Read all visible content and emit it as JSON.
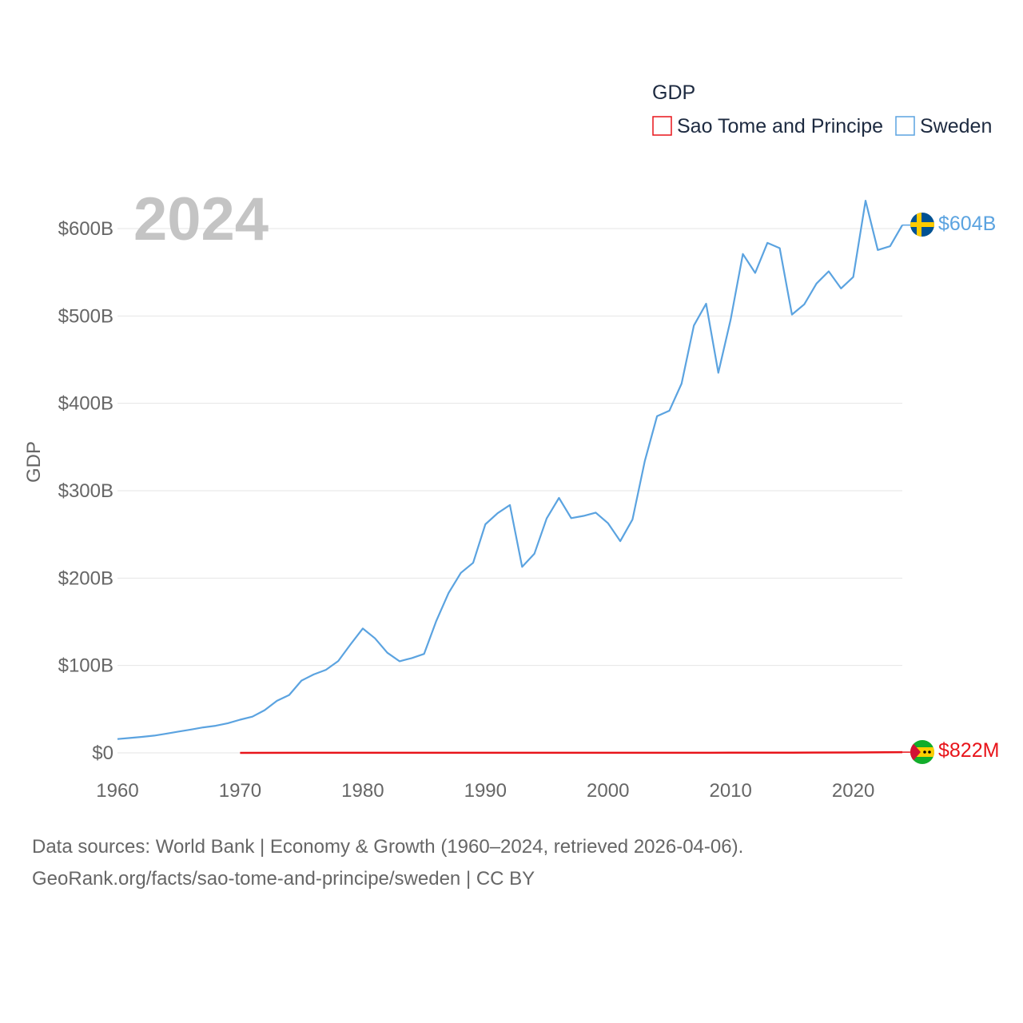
{
  "colors": {
    "sweden": "#5ba3e0",
    "sao_tome": "#e8141a",
    "grid": "#e6e6e6",
    "text": "#666666",
    "legend_text": "#1d2a40",
    "year": "#c4c4c4"
  },
  "chart_data": {
    "type": "line",
    "title": "",
    "ylabel": "GDP",
    "xlabel": "",
    "year_label": "2024",
    "xlim": [
      1960,
      2024
    ],
    "ylim": [
      0,
      600
    ],
    "y_unit": "billion USD",
    "x_ticks": [
      "1960",
      "1970",
      "1980",
      "1990",
      "2000",
      "2010",
      "2020"
    ],
    "y_ticks": [
      "$0",
      "$100B",
      "$200B",
      "$300B",
      "$400B",
      "$500B",
      "$600B"
    ],
    "legend": {
      "title": "GDP",
      "position": "top-right",
      "entries": [
        "Sao Tome and Principe",
        "Sweden"
      ]
    },
    "series": [
      {
        "name": "Sweden",
        "color_key": "sweden",
        "end_label": "$604B",
        "flag": "sweden-flag",
        "x": [
          1960,
          1961,
          1962,
          1963,
          1964,
          1965,
          1966,
          1967,
          1968,
          1969,
          1970,
          1971,
          1972,
          1973,
          1974,
          1975,
          1976,
          1977,
          1978,
          1979,
          1980,
          1981,
          1982,
          1983,
          1984,
          1985,
          1986,
          1987,
          1988,
          1989,
          1990,
          1991,
          1992,
          1993,
          1994,
          1995,
          1996,
          1997,
          1998,
          1999,
          2000,
          2001,
          2002,
          2003,
          2004,
          2005,
          2006,
          2007,
          2008,
          2009,
          2010,
          2011,
          2012,
          2013,
          2014,
          2015,
          2016,
          2017,
          2018,
          2019,
          2020,
          2021,
          2022,
          2023,
          2024
        ],
        "values": [
          15.8,
          17.0,
          18.3,
          19.8,
          22.0,
          24.4,
          26.7,
          29.2,
          31.0,
          33.9,
          38.0,
          41.4,
          48.8,
          59.5,
          66.2,
          82.7,
          89.7,
          95.0,
          105.1,
          124.0,
          142.3,
          131.1,
          114.6,
          104.8,
          108.5,
          113.2,
          151.0,
          183.0,
          206.0,
          217.5,
          261.6,
          274.3,
          283.6,
          212.8,
          228.0,
          268.3,
          291.8,
          268.6,
          271.2,
          274.9,
          262.8,
          242.3,
          267.2,
          334.0,
          385.2,
          391.6,
          422.6,
          489.1,
          514.0,
          435.0,
          495.8,
          570.9,
          549.2,
          583.6,
          577.6,
          501.6,
          513.3,
          537.1,
          551.1,
          531.5,
          544.6,
          631.9,
          575.5,
          579.8,
          604.0
        ]
      },
      {
        "name": "Sao Tome and Principe",
        "color_key": "sao_tome",
        "end_label": "$822M",
        "flag": "sao-tome-flag",
        "x": [
          1970,
          1975,
          1980,
          1985,
          1990,
          1995,
          2000,
          2005,
          2010,
          2015,
          2020,
          2024
        ],
        "values": [
          0.04,
          0.06,
          0.06,
          0.08,
          0.07,
          0.1,
          0.08,
          0.13,
          0.2,
          0.32,
          0.47,
          0.822
        ]
      }
    ]
  },
  "footer": {
    "line1": "Data sources: World Bank | Economy & Growth (1960–2024, retrieved 2026-04-06).",
    "line2": "GeoRank.org/facts/sao-tome-and-principe/sweden | CC BY"
  }
}
